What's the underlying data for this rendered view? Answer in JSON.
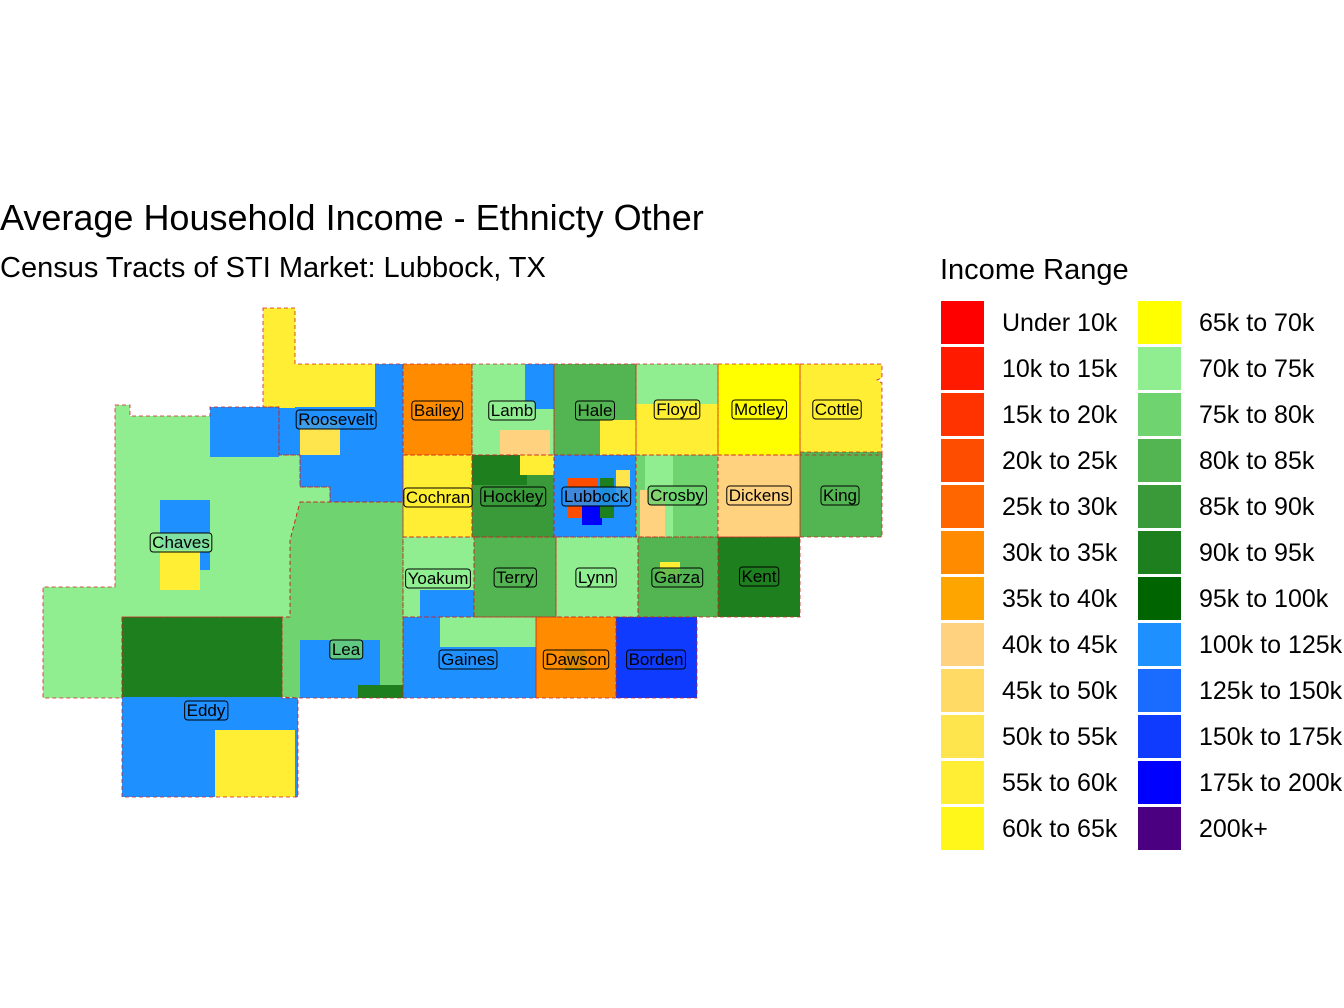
{
  "title": "Average Household Income - Ethnicty Other",
  "subtitle": "Census Tracts of STI Market: Lubbock, TX",
  "legend": {
    "title": "Income Range",
    "items": [
      {
        "label": "Under 10k",
        "color": "#FF0000"
      },
      {
        "label": "10k to 15k",
        "color": "#FF1A00"
      },
      {
        "label": "15k to 20k",
        "color": "#FF3300"
      },
      {
        "label": "20k to 25k",
        "color": "#FF4D00"
      },
      {
        "label": "25k to 30k",
        "color": "#FF6600"
      },
      {
        "label": "30k to 35k",
        "color": "#FF8C00"
      },
      {
        "label": "35k to 40k",
        "color": "#FFA500"
      },
      {
        "label": "40k to 45k",
        "color": "#FFD280"
      },
      {
        "label": "45k to 50k",
        "color": "#FFDB66"
      },
      {
        "label": "50k to 55k",
        "color": "#FFE54D"
      },
      {
        "label": "55k to 60k",
        "color": "#FFEE33"
      },
      {
        "label": "60k to 65k",
        "color": "#FFF71A"
      },
      {
        "label": "65k to 70k",
        "color": "#FFFF00"
      },
      {
        "label": "70k to 75k",
        "color": "#90EE90"
      },
      {
        "label": "75k to 80k",
        "color": "#6FD36F"
      },
      {
        "label": "80k to 85k",
        "color": "#52B552"
      },
      {
        "label": "85k to 90k",
        "color": "#3A9A3A"
      },
      {
        "label": "90k to 95k",
        "color": "#1E7F1E"
      },
      {
        "label": "95k to 100k",
        "color": "#006400"
      },
      {
        "label": "100k to 125k",
        "color": "#1E90FF"
      },
      {
        "label": "125k to 150k",
        "color": "#1A6BFF"
      },
      {
        "label": "150k to 175k",
        "color": "#0F3BFF"
      },
      {
        "label": "175k to 200k",
        "color": "#0000FF"
      },
      {
        "label": "200k+",
        "color": "#4B0082"
      }
    ]
  },
  "counties": [
    {
      "name": "Roosevelt",
      "color": "#1E90FF"
    },
    {
      "name": "Chaves",
      "color": "#90EE90"
    },
    {
      "name": "Lea",
      "color": "#6FD36F"
    },
    {
      "name": "Eddy",
      "color": "#1E90FF"
    },
    {
      "name": "Bailey",
      "color": "#FF8C00"
    },
    {
      "name": "Lamb",
      "color": "#90EE90"
    },
    {
      "name": "Hale",
      "color": "#52B552"
    },
    {
      "name": "Floyd",
      "color": "#FFEE33"
    },
    {
      "name": "Motley",
      "color": "#FFFF00"
    },
    {
      "name": "Cottle",
      "color": "#FFEE33"
    },
    {
      "name": "Cochran",
      "color": "#FFEE33"
    },
    {
      "name": "Hockley",
      "color": "#3A9A3A"
    },
    {
      "name": "Lubbock",
      "color": "#1E90FF"
    },
    {
      "name": "Crosby",
      "color": "#6FD36F"
    },
    {
      "name": "Dickens",
      "color": "#FFD280"
    },
    {
      "name": "King",
      "color": "#52B552"
    },
    {
      "name": "Yoakum",
      "color": "#90EE90"
    },
    {
      "name": "Terry",
      "color": "#52B552"
    },
    {
      "name": "Lynn",
      "color": "#90EE90"
    },
    {
      "name": "Garza",
      "color": "#52B552"
    },
    {
      "name": "Kent",
      "color": "#1E7F1E"
    },
    {
      "name": "Gaines",
      "color": "#1E90FF"
    },
    {
      "name": "Dawson",
      "color": "#FF8C00"
    },
    {
      "name": "Borden",
      "color": "#0F3BFF"
    }
  ]
}
